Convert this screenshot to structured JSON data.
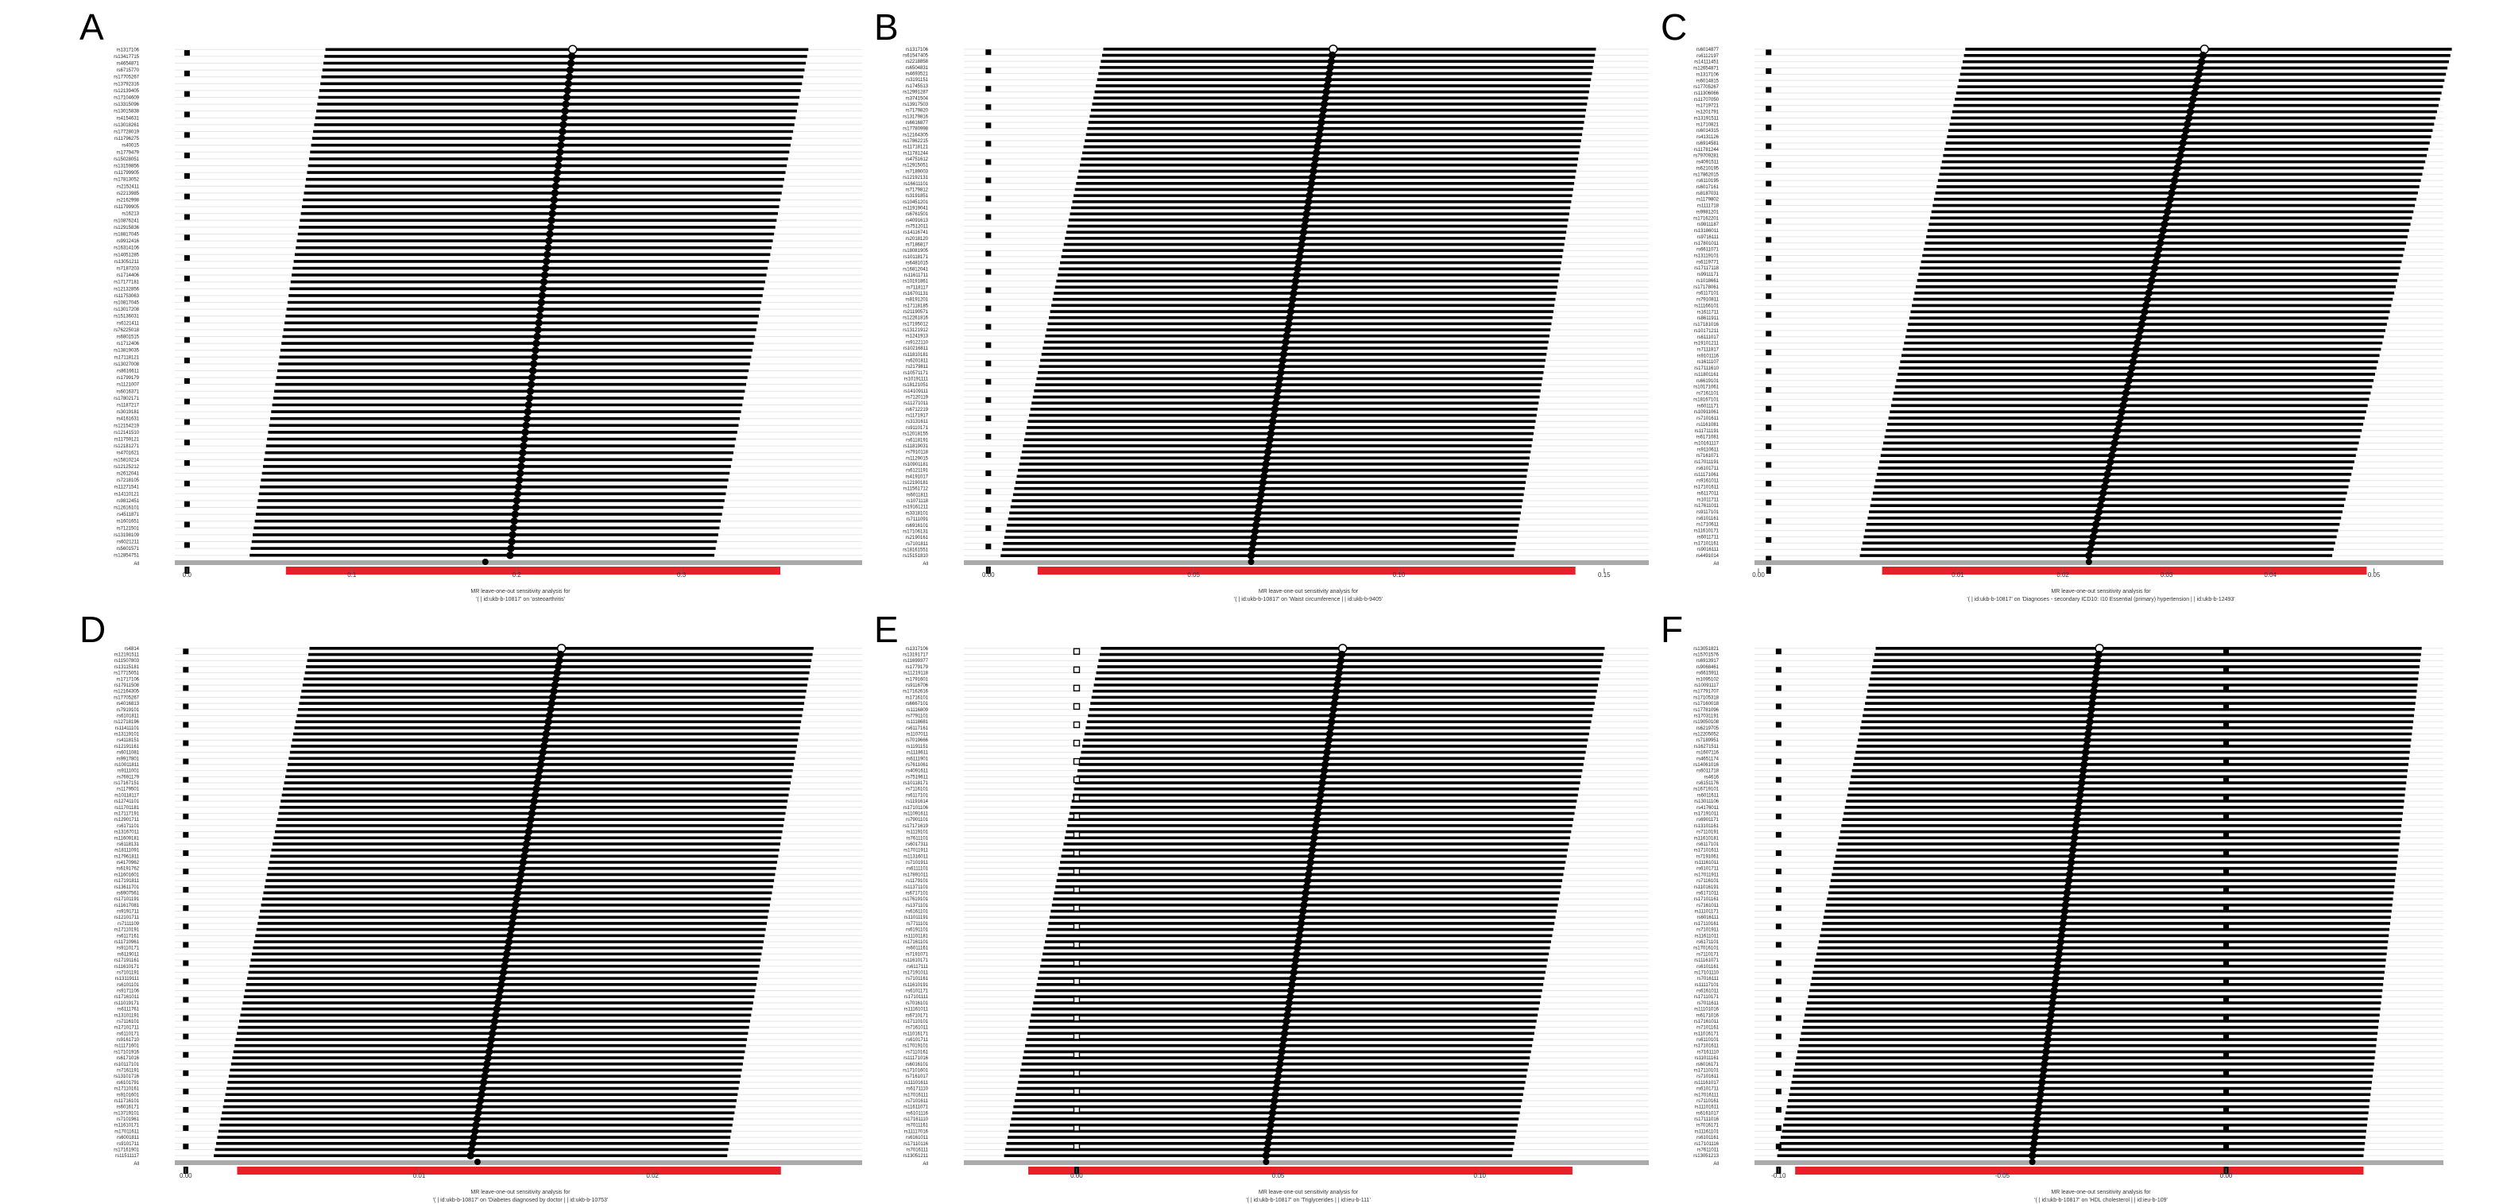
{
  "figure": {
    "type": "multi-panel forest plots (MR leave-one-out sensitivity analysis)"
  },
  "chart_data": [
    {
      "type": "forest",
      "panel_label": "A",
      "caption_line1": "MR leave-one-out sensitivity analysis for",
      "caption_line2": "'( | id:ukb-b-10817' on 'osteoarthritis'",
      "n_snps": 75,
      "snps": [
        "rs1317106",
        "rs13417715",
        "rs4654871",
        "rs6715770",
        "rs17705267",
        "rs13792316",
        "rs12139405",
        "rs17104609",
        "rs13315096",
        "rs13015838",
        "rs4154631",
        "rs13018261",
        "rs17728019",
        "rs11796275",
        "rs40015",
        "rs1779479",
        "rs15028051",
        "rs13159856",
        "rs11799905",
        "rs17813052",
        "rs2152411",
        "rs2213985",
        "rs2162998",
        "rs11799905",
        "rs16213",
        "rs10876241",
        "rs12915836",
        "rs18817045",
        "rs9912416",
        "rs16314106",
        "rs14051285",
        "rs13051211",
        "rs7187203",
        "rs1714406",
        "rs17177181",
        "rs12132856",
        "rs11753063",
        "rs10817045",
        "rs13017208",
        "rs15136031",
        "rs6121411",
        "rs76225018",
        "rs6801515",
        "rs1712406",
        "rs13819035",
        "rs17118121",
        "rs13027008",
        "rs8616611",
        "rs1799179",
        "rs1121007",
        "rs6016371",
        "rs17802171",
        "rs1187217",
        "rs3019181",
        "rs4161631",
        "rs12154219",
        "rs12141510",
        "rs11759121",
        "rs12181271",
        "rs4701621",
        "rs15810214",
        "rs12125212",
        "rs2612041",
        "rs7218105",
        "rs11271541",
        "rs14110121",
        "rs9812451",
        "rs12616101",
        "rs4511871",
        "rs1601651",
        "rs7121501",
        "rs13198109",
        "rs6021211",
        "rs5601571",
        "rs12854751"
      ],
      "beta_start": 0.234,
      "beta_end": 0.196,
      "ci_low_start": 0.084,
      "ci_low_end": 0.038,
      "ci_high_start": 0.377,
      "ci_high_end": 0.32,
      "all_estimate": 0.181,
      "all_ci": [
        0.06,
        0.36
      ],
      "xlim": [
        -0.005,
        0.4
      ],
      "ticks": [
        0.0,
        0.1,
        0.2,
        0.3
      ],
      "tick_labels": [
        "0.0",
        "0.1",
        "0.2",
        "0.3"
      ],
      "square_x": [
        0.0
      ],
      "open_squares": false
    },
    {
      "type": "forest",
      "panel_label": "B",
      "caption_line1": "MR leave-one-out sensitivity analysis for",
      "caption_line2": "'( | id:ukb-b-10817' on 'Waist circumference | | id:ukb-b-9405'",
      "n_snps": 84,
      "snps": [
        "rs1317106",
        "rs61547405",
        "rs2218858",
        "rs6504831",
        "rs4693521",
        "rs3191151",
        "rs1745513",
        "rs12991287",
        "rs3741504",
        "rs13917503",
        "rs7179820",
        "rs13179816",
        "rs6616877",
        "rs17780998",
        "rs12164305",
        "rs17862215",
        "rs11718121",
        "rs11781244",
        "rs4751612",
        "rs12915051",
        "rs7189003",
        "rs12192131",
        "rs16611101",
        "rs7179812",
        "rs3191851",
        "rs10451201",
        "rs11919041",
        "rs6761501",
        "rs4091613",
        "rs7512011",
        "rs14116741",
        "rs2018120",
        "rs7186817",
        "rs18081905",
        "rs10118171",
        "rs6481015",
        "rs16812041",
        "rs11611711",
        "rs10191861",
        "rs7118117",
        "rs16701131",
        "rs8191201",
        "rs17118185",
        "rs21190571",
        "rs12261816",
        "rs17195012",
        "rs13121912",
        "rs1241913",
        "rs9122110",
        "rs10216811",
        "rs11810181",
        "rs6201811",
        "rs2179811",
        "rs10571171",
        "rs10191111",
        "rs18121051",
        "rs14109111",
        "rs7120119",
        "rs11271011",
        "rs6712219",
        "rs1171917",
        "rs3131611",
        "rs9110171",
        "rs12018155",
        "rs6118191",
        "rs11819031",
        "rs7910118",
        "rs1129015",
        "rs10901181",
        "rs6121191",
        "rs4191017",
        "rs12190181",
        "rs11561712",
        "rs6011811",
        "rs1071118",
        "rs19161211",
        "rs3318101",
        "rs7111091",
        "rs6916101",
        "rs17106131",
        "rs2190161",
        "rs7101811",
        "rs18161551",
        "rs15151810"
      ],
      "beta_start": 0.084,
      "beta_end": 0.064,
      "ci_low_start": 0.028,
      "ci_low_end": 0.003,
      "ci_high_start": 0.148,
      "ci_high_end": 0.128,
      "all_estimate": 0.064,
      "all_ci": [
        0.012,
        0.143
      ],
      "xlim": [
        -0.005,
        0.157
      ],
      "ticks": [
        0.0,
        0.05,
        0.1,
        0.15
      ],
      "tick_labels": [
        "0.00",
        "0.05",
        "0.10",
        "0.15"
      ],
      "square_x": [
        0.0
      ],
      "open_squares": false
    },
    {
      "type": "forest",
      "panel_label": "C",
      "caption_line1": "MR leave-one-out sensitivity analysis for",
      "caption_line2": "'( | id:ukb-b-10817' on 'Diagnoses - secondary ICD10: I10 Essential (primary) hypertension | | id:ukb-b-12493'",
      "n_snps": 82,
      "snps": [
        "rs6014877",
        "rs6112197",
        "rs14111451",
        "rs12654871",
        "rs1317106",
        "rs6014815",
        "rs17705267",
        "rs11306066",
        "rs11707050",
        "rs1719721",
        "rs1201791",
        "rs13191511",
        "rs1710821",
        "rs6014315",
        "rs4131126",
        "rs6914581",
        "rs11781244",
        "rs79709281",
        "rs4091511",
        "rs6210195",
        "rs17862015",
        "rs6110195",
        "rs6017161",
        "rs8187031",
        "rs1179802",
        "rs1111718",
        "rs9981201",
        "rs17162201",
        "rs9811187",
        "rs13186011",
        "rs9716111",
        "rs17801011",
        "rs6611071",
        "rs13119101",
        "rs6119771",
        "rs17117118",
        "rs9911171",
        "rs1018661",
        "rs17178061",
        "rs6117101",
        "rs7910811",
        "rs11166101",
        "rs1611711",
        "rs8611911",
        "rs17181016",
        "rs10171211",
        "rs6111017",
        "rs19101211",
        "rs7111817",
        "rs9101116",
        "rs1611107",
        "rs17111610",
        "rs11801161",
        "rs6619101",
        "rs10171061",
        "rs7161101",
        "rs18167101",
        "rs6011171",
        "rs10911061",
        "rs7101611",
        "rs1161081",
        "rs11711191",
        "rs6171081",
        "rs10161117",
        "rs9110611",
        "rs7161071",
        "rs17011191",
        "rs6101711",
        "rs11171061",
        "rs9161011",
        "rs17101611",
        "rs6117011",
        "rs1011711",
        "rs17611011",
        "rs9117101",
        "rs6101161",
        "rs1710611",
        "rs11610171",
        "rs6011711",
        "rs17101161",
        "rs9016111",
        "rs4491014"
      ],
      "beta_start": 0.0215,
      "beta_end": 0.0158,
      "ci_low_start": 0.0097,
      "ci_low_end": 0.0045,
      "ci_high_start": 0.0337,
      "ci_high_end": 0.0278,
      "all_estimate": 0.0158,
      "all_ci": [
        0.0056,
        0.0295
      ],
      "xlim": [
        -0.0005,
        0.0325
      ],
      "ticks": [
        0.0,
        0.01,
        0.02,
        0.03,
        0.04,
        0.05
      ],
      "tick_labels": [
        "0.00",
        "0.01",
        "0.02",
        "0.03",
        "0.04",
        "0.05"
      ],
      "tick_positions_frac": [
        0.0,
        0.298,
        0.455,
        0.61,
        0.765,
        0.92
      ],
      "square_x": [
        0.0
      ],
      "open_squares": false
    },
    {
      "type": "forest",
      "panel_label": "D",
      "caption_line1": "MR leave-one-out sensitivity analysis for",
      "caption_line2": "'( | id:ukb-b-10817' on 'Diabetes diagnosed by doctor | | id:ukb-b-10753'",
      "n_snps": 84,
      "snps": [
        "rs4814",
        "rs12191511",
        "rs11507803",
        "rs13115181",
        "rs17715051",
        "rs1717106",
        "rs17911508",
        "rs12164305",
        "rs17705267",
        "rs4016813",
        "rs7919101",
        "rs6101811",
        "rs12718196",
        "rs11411101",
        "rs13119101",
        "rs4118151",
        "rs12191161",
        "rs6011081",
        "rs9917801",
        "rs10011811",
        "rs9111001",
        "rs7691179",
        "rs17167151",
        "rs1179501",
        "rs10118117",
        "rs12741101",
        "rs11701181",
        "rs17117191",
        "rs12901711",
        "rs6171101",
        "rs13167011",
        "rs11609181",
        "rs6118131",
        "rs18111091",
        "rs17961811",
        "rs4170962",
        "rs6191762",
        "rs11601601",
        "rs17191811",
        "rs13611701",
        "rs6907561",
        "rs17101191",
        "rs11617081",
        "rs9191711",
        "rs12101711",
        "rs7111109",
        "rs17110191",
        "rs6117161",
        "rs11710961",
        "rs9110171",
        "rs6119011",
        "rs17191161",
        "rs11610171",
        "rs7101191",
        "rs13119111",
        "rs6101101",
        "rs9171106",
        "rs17161011",
        "rs11019171",
        "rs6111761",
        "rs13101191",
        "rs7116101",
        "rs17101711",
        "rs6110171",
        "rs9161710",
        "rs11171601",
        "rs17101916",
        "rs6171016",
        "rs10117101",
        "rs7161191",
        "rs13101716",
        "rs6101791",
        "rs17110161",
        "rs9101601",
        "rs11716101",
        "rs6016171",
        "rs13719101",
        "rs7101961",
        "rs11610171",
        "rs17011611",
        "rs6001811",
        "rs9101711",
        "rs17161901",
        "rs11511117"
      ],
      "beta_start": 0.0161,
      "beta_end": 0.0122,
      "ci_low_start": 0.0053,
      "ci_low_end": 0.0012,
      "ci_high_start": 0.0269,
      "ci_high_end": 0.0232,
      "all_estimate": 0.0125,
      "all_ci": [
        0.0022,
        0.0255
      ],
      "xlim": [
        -0.0003,
        0.0283
      ],
      "ticks": [
        0.0,
        0.01,
        0.02
      ],
      "tick_labels": [
        "0.00",
        "0.01",
        "0.02"
      ],
      "square_x": [
        0.0
      ],
      "open_squares": false
    },
    {
      "type": "forest",
      "panel_label": "E",
      "caption_line1": "MR leave-one-out sensitivity analysis for",
      "caption_line2": "'( | id:ukb-b-10817' on 'Triglycerides | | id:ieu-b-111'",
      "n_snps": 84,
      "snps": [
        "rs1317106",
        "rs13191717",
        "rs11699377",
        "rs1779179",
        "rs11219118",
        "rs1791601",
        "rs9116706",
        "rs17162616",
        "rs1716101",
        "rs6667101",
        "rs1116809",
        "rs7791101",
        "rs1118681",
        "rs6117161",
        "rs1107011",
        "rs7019666",
        "rs1191151",
        "rs1118611",
        "rs6111901",
        "rs7611061",
        "rs4091611",
        "rs7519611",
        "rs10118171",
        "rs7116101",
        "rs6117101",
        "rs1191614",
        "rs17101106",
        "rs11091611",
        "rs7901101",
        "rs17171619",
        "rs1119101",
        "rs7611101",
        "rs6017311",
        "rs17011911",
        "rs11316011",
        "rs7101911",
        "rs6111101",
        "rs17891011",
        "rs1179101",
        "rs11371101",
        "rs6717101",
        "rs17619101",
        "rs1371101",
        "rs6161101",
        "rs11011191",
        "rs7711101",
        "rs6191101",
        "rs11101181",
        "rs17161101",
        "rs6011161",
        "rs7191071",
        "rs11610171",
        "rs6117111",
        "rs17191011",
        "rs7101161",
        "rs11610191",
        "rs6101171",
        "rs17101111",
        "rs7016101",
        "rs11161011",
        "rs6710171",
        "rs17110101",
        "rs7161011",
        "rs11016171",
        "rs6101711",
        "rs17019101",
        "rs7110161",
        "rs11171016",
        "rs6016101",
        "rs17101601",
        "rs7161017",
        "rs11101611",
        "rs6171110",
        "rs17016111",
        "rs7101611",
        "rs11611071",
        "rs6101116",
        "rs17161110",
        "rs7011161",
        "rs11117016",
        "rs6161011",
        "rs17110116",
        "rs7016111",
        "rs13051211"
      ],
      "beta_start": 0.066,
      "beta_end": 0.047,
      "ci_low_start": 0.006,
      "ci_low_end": -0.018,
      "ci_high_start": 0.131,
      "ci_high_end": 0.108,
      "all_estimate": 0.047,
      "all_ci": [
        -0.012,
        0.123
      ],
      "xlim": [
        -0.027,
        0.138
      ],
      "ticks": [
        0.0,
        0.05,
        0.1
      ],
      "tick_labels": [
        "0.00",
        "0.05",
        "0.10"
      ],
      "square_x": [
        0.0
      ],
      "open_squares": true
    },
    {
      "type": "forest",
      "panel_label": "F",
      "caption_line1": "MR leave-one-out sensitivity analysis for",
      "caption_line2": "'( | id:ukb-b-10817' on 'HDL cholesterol | | id:ieu-b-109'",
      "n_snps": 84,
      "snps": [
        "rs13051821",
        "rs15701576",
        "rs6913917",
        "rs9068461",
        "rs6615911",
        "rs1095102",
        "rs10091117",
        "rs17791707",
        "rs17105318",
        "rs17160018",
        "rs17781096",
        "rs17031191",
        "rs19050108",
        "rs6219705",
        "rs12205052",
        "rs7189951",
        "rs16271511",
        "rs1607116",
        "rs4651174",
        "rs14061016",
        "rs6011718",
        "rs4616",
        "rs6151176",
        "rs16719101",
        "rs6011611",
        "rs13011106",
        "rs4176011",
        "rs17191011",
        "rs6901171",
        "rs13101161",
        "rs7110191",
        "rs11610181",
        "rs6117101",
        "rs17101611",
        "rs7191061",
        "rs11161011",
        "rs6101711",
        "rs17011911",
        "rs7116101",
        "rs11016191",
        "rs6171011",
        "rs17101161",
        "rs7161011",
        "rs11101171",
        "rs6016111",
        "rs17110161",
        "rs7101911",
        "rs11611011",
        "rs6171101",
        "rs17016101",
        "rs7110171",
        "rs11161071",
        "rs6101161",
        "rs17101110",
        "rs7016111",
        "rs11117101",
        "rs6161011",
        "rs17110171",
        "rs7011611",
        "rs11101016",
        "rs6171016",
        "rs17161011",
        "rs7101161",
        "rs11016171",
        "rs6110101",
        "rs17101611",
        "rs7161110",
        "rs11011161",
        "rs6016171",
        "rs17110101",
        "rs7101611",
        "rs11161017",
        "rs6101711",
        "rs17016111",
        "rs7110161",
        "rs11101611",
        "rs6161017",
        "rs17111016",
        "rs7016171",
        "rs11161101",
        "rs6101161",
        "rs17101116",
        "rs7611011",
        "rs13051213"
      ],
      "beta_start": -0.0283,
      "beta_end": -0.0433,
      "ci_low_start": -0.0783,
      "ci_low_end": -0.1003,
      "ci_high_start": 0.0437,
      "ci_high_end": 0.0307,
      "all_estimate": -0.0433,
      "all_ci": [
        -0.0963,
        0.0307
      ],
      "xlim": [
        -0.1045,
        0.045
      ],
      "ticks": [
        -0.1,
        -0.05,
        0.0
      ],
      "tick_labels": [
        "-0.10",
        "-0.05",
        "0.00"
      ],
      "square_x": [
        -0.1,
        0.0
      ],
      "open_squares": false
    }
  ]
}
